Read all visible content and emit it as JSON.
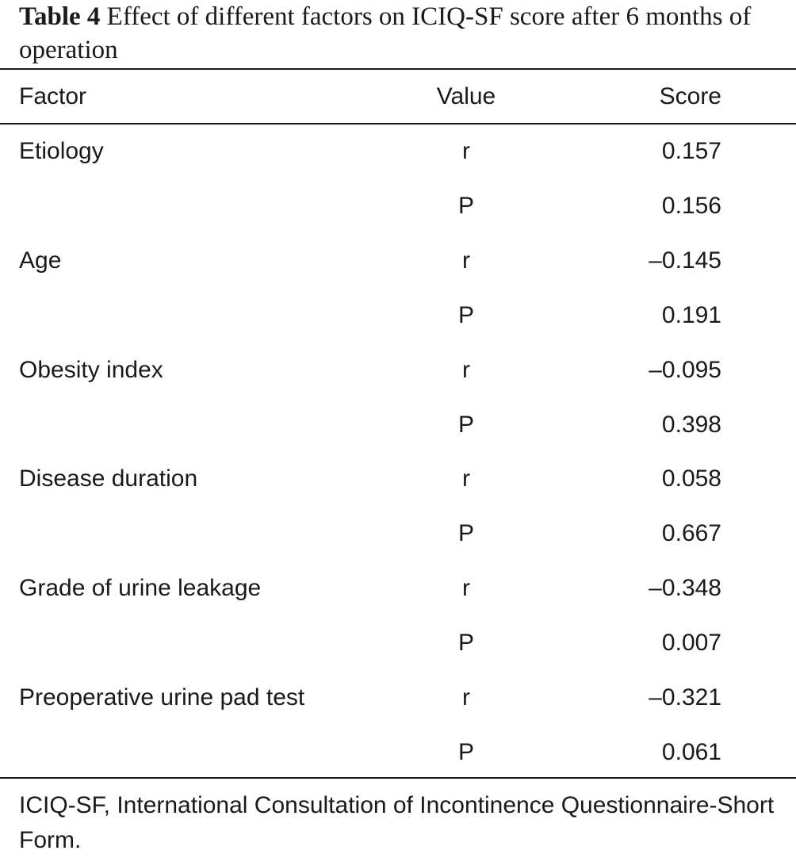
{
  "caption": {
    "label": "Table 4",
    "text": "Effect of different factors on ICIQ-SF score after 6 months of operation"
  },
  "table": {
    "headers": [
      "Factor",
      "Value",
      "Score"
    ],
    "rows": [
      [
        "Etiology",
        "r",
        "0.157"
      ],
      [
        "",
        "P",
        "0.156"
      ],
      [
        "Age",
        "r",
        "–0.145"
      ],
      [
        "",
        "P",
        "0.191"
      ],
      [
        "Obesity index",
        "r",
        "–0.095"
      ],
      [
        "",
        "P",
        "0.398"
      ],
      [
        "Disease duration",
        "r",
        "0.058"
      ],
      [
        "",
        "P",
        "0.667"
      ],
      [
        "Grade of urine leakage",
        "r",
        "–0.348"
      ],
      [
        "",
        "P",
        "0.007"
      ],
      [
        "Preoperative urine pad test",
        "r",
        "–0.321"
      ],
      [
        "",
        "P",
        "0.061"
      ]
    ]
  },
  "footnote": "ICIQ-SF, International Consultation of Incontinence Questionnaire-Short Form."
}
